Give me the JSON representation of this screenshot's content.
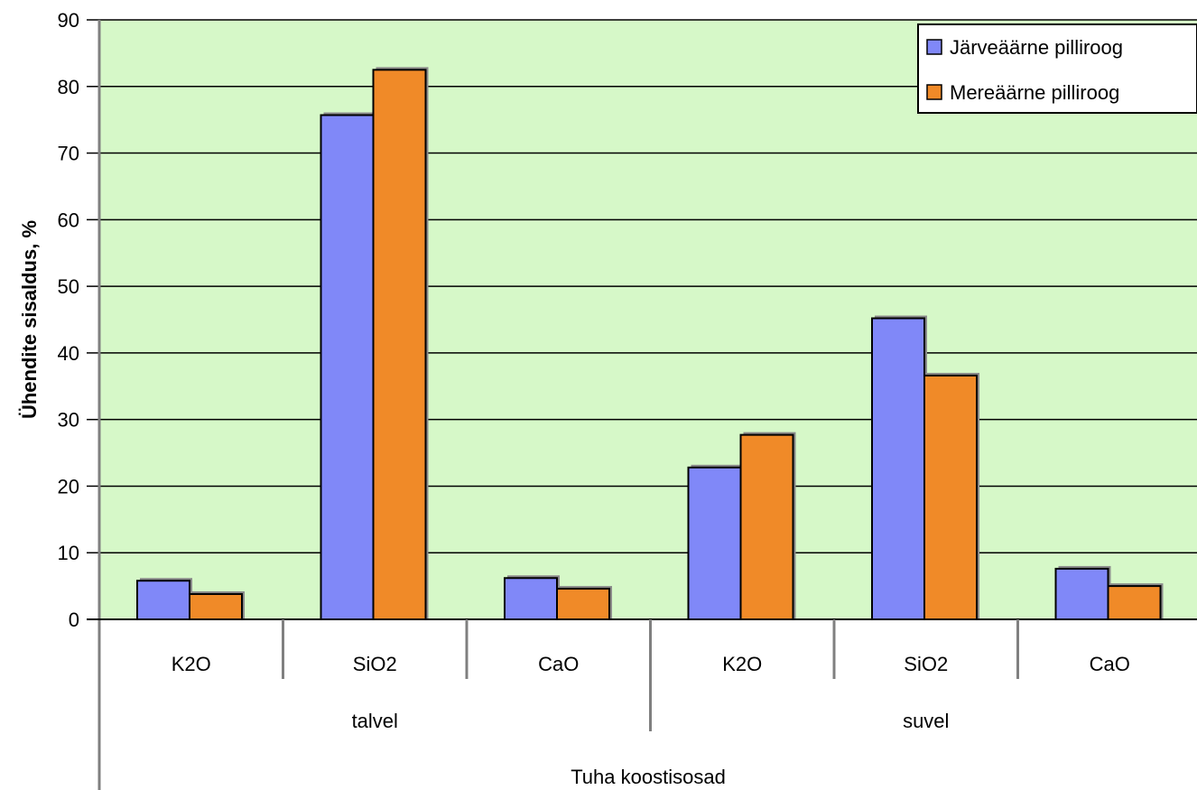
{
  "chart_data": {
    "type": "bar",
    "ylabel": "Ühendite sisaldus, %",
    "xlabel": "Tuha koostisosad",
    "ylim": [
      0,
      90
    ],
    "yticks": [
      0,
      10,
      20,
      30,
      40,
      50,
      60,
      70,
      80,
      90
    ],
    "grid": true,
    "legend_position": "top-right",
    "categories": [
      "K2O",
      "SiO2",
      "CaO",
      "K2O",
      "SiO2",
      "CaO"
    ],
    "groups": [
      {
        "label": "talvel",
        "categories": [
          "K2O",
          "SiO2",
          "CaO"
        ]
      },
      {
        "label": "suvel",
        "categories": [
          "K2O",
          "SiO2",
          "CaO"
        ]
      }
    ],
    "series": [
      {
        "name": "Järveäärne pilliroog",
        "color": "#8088f8",
        "values": [
          5.8,
          75.7,
          6.2,
          22.8,
          45.2,
          7.6
        ]
      },
      {
        "name": "Mereäärne pilliroog",
        "color": "#f08a28",
        "values": [
          3.8,
          82.5,
          4.6,
          27.7,
          36.6,
          5.0
        ]
      }
    ],
    "plot_background": "#d6f8c8"
  }
}
